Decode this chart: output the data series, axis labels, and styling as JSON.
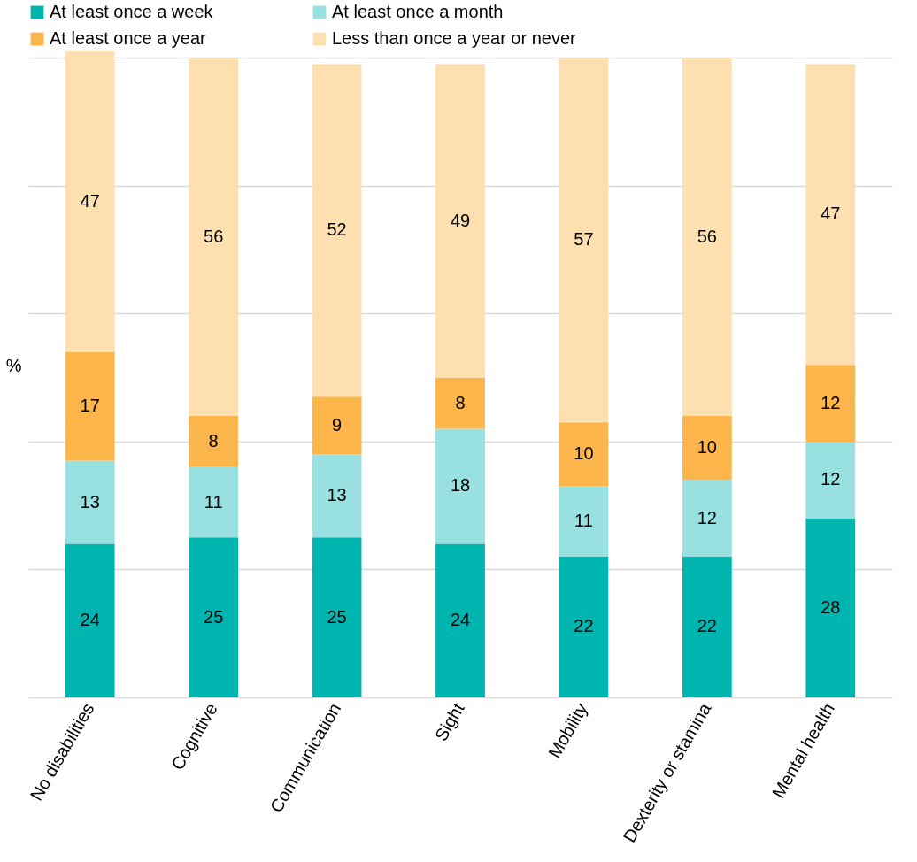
{
  "chart_data": {
    "type": "bar",
    "stacked": true,
    "ylabel": "%",
    "categories": [
      "No disabilities",
      "Cognitive",
      "Communication",
      "Sight",
      "Mobility",
      "Dexterity or stamina",
      "Mental health"
    ],
    "series": [
      {
        "name": "At least once a week",
        "color": "#00b5b0",
        "values": [
          24,
          25,
          25,
          24,
          22,
          22,
          28
        ]
      },
      {
        "name": "At least once a month",
        "color": "#99e0e0",
        "values": [
          13,
          11,
          13,
          18,
          11,
          12,
          12
        ]
      },
      {
        "name": "At least once a year",
        "color": "#fbb54a",
        "values": [
          17,
          8,
          9,
          8,
          10,
          10,
          12
        ]
      },
      {
        "name": "Less than once a year or never",
        "color": "#fddfb0",
        "values": [
          47,
          56,
          52,
          49,
          57,
          56,
          47
        ]
      }
    ],
    "ylim": [
      0,
      101
    ],
    "yticks": [
      {
        "value": 0,
        "label": null
      },
      {
        "value": 20,
        "label": null
      },
      {
        "value": 40,
        "label": null
      },
      {
        "value": 60,
        "label": null
      },
      {
        "value": 80,
        "label": null
      },
      {
        "value": 100,
        "label": null
      }
    ],
    "tick_labels": "x",
    "grid": "y",
    "legend": "top",
    "data_labels": true
  }
}
